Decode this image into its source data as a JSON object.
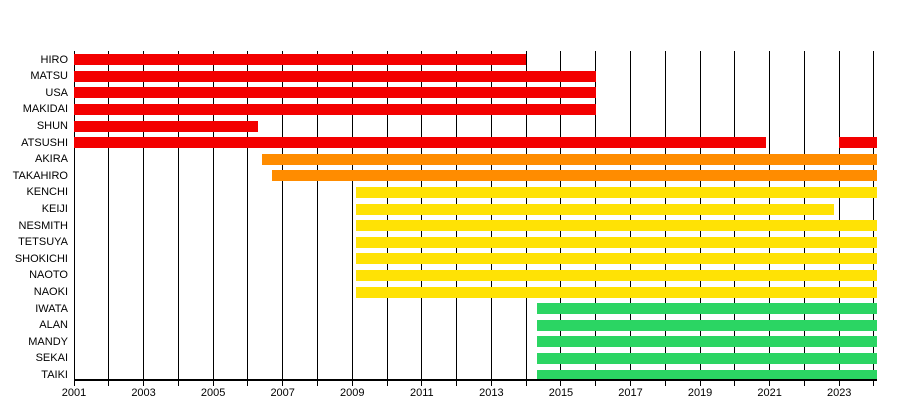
{
  "chart_data": {
    "type": "bar",
    "subtype": "gantt-membership-timeline",
    "title": "",
    "xlabel": "",
    "ylabel": "",
    "x_axis": {
      "min": 2001,
      "max": 2024.1,
      "gridline_years": [
        2001,
        2002,
        2003,
        2004,
        2005,
        2006,
        2007,
        2008,
        2009,
        2010,
        2011,
        2012,
        2013,
        2014,
        2015,
        2016,
        2017,
        2018,
        2019,
        2020,
        2021,
        2022,
        2023,
        2024
      ],
      "tick_years": [
        2001,
        2003,
        2005,
        2007,
        2009,
        2011,
        2013,
        2015,
        2017,
        2019,
        2021,
        2023
      ],
      "tick_labels": [
        "2001",
        "2003",
        "2005",
        "2007",
        "2009",
        "2011",
        "2013",
        "2015",
        "2017",
        "2019",
        "2021",
        "2023"
      ]
    },
    "colors": {
      "red": "#F30000",
      "orange": "#FF8C00",
      "yellow": "#FFE205",
      "green": "#2BD563"
    },
    "rows": [
      {
        "label": "HIRO",
        "color": "red",
        "segments": [
          [
            2001.0,
            2014.0
          ]
        ]
      },
      {
        "label": "MATSU",
        "color": "red",
        "segments": [
          [
            2001.0,
            2016.0
          ]
        ]
      },
      {
        "label": "USA",
        "color": "red",
        "segments": [
          [
            2001.0,
            2016.0
          ]
        ]
      },
      {
        "label": "MAKIDAI",
        "color": "red",
        "segments": [
          [
            2001.0,
            2016.0
          ]
        ]
      },
      {
        "label": "SHUN",
        "color": "red",
        "segments": [
          [
            2001.0,
            2006.3
          ]
        ]
      },
      {
        "label": "ATSUSHI",
        "color": "red",
        "segments": [
          [
            2001.0,
            2020.9
          ],
          [
            2023.0,
            2024.1
          ]
        ]
      },
      {
        "label": "AKIRA",
        "color": "orange",
        "segments": [
          [
            2006.4,
            2024.1
          ]
        ]
      },
      {
        "label": "TAKAHIRO",
        "color": "orange",
        "segments": [
          [
            2006.7,
            2024.1
          ]
        ]
      },
      {
        "label": "KENCHI",
        "color": "yellow",
        "segments": [
          [
            2009.1,
            2024.1
          ]
        ]
      },
      {
        "label": "KEIJI",
        "color": "yellow",
        "segments": [
          [
            2009.1,
            2022.85
          ]
        ]
      },
      {
        "label": "NESMITH",
        "color": "yellow",
        "segments": [
          [
            2009.1,
            2024.1
          ]
        ]
      },
      {
        "label": "TETSUYA",
        "color": "yellow",
        "segments": [
          [
            2009.1,
            2024.1
          ]
        ]
      },
      {
        "label": "SHOKICHI",
        "color": "yellow",
        "segments": [
          [
            2009.1,
            2024.1
          ]
        ]
      },
      {
        "label": "NAOTO",
        "color": "yellow",
        "segments": [
          [
            2009.1,
            2024.1
          ]
        ]
      },
      {
        "label": "NAOKI",
        "color": "yellow",
        "segments": [
          [
            2009.1,
            2024.1
          ]
        ]
      },
      {
        "label": "IWATA",
        "color": "green",
        "segments": [
          [
            2014.3,
            2024.1
          ]
        ]
      },
      {
        "label": "ALAN",
        "color": "green",
        "segments": [
          [
            2014.3,
            2024.1
          ]
        ]
      },
      {
        "label": "MANDY",
        "color": "green",
        "segments": [
          [
            2014.3,
            2024.1
          ]
        ]
      },
      {
        "label": "SEKAI",
        "color": "green",
        "segments": [
          [
            2014.3,
            2024.1
          ]
        ]
      },
      {
        "label": "TAIKI",
        "color": "green",
        "segments": [
          [
            2014.3,
            2024.1
          ]
        ]
      }
    ]
  }
}
